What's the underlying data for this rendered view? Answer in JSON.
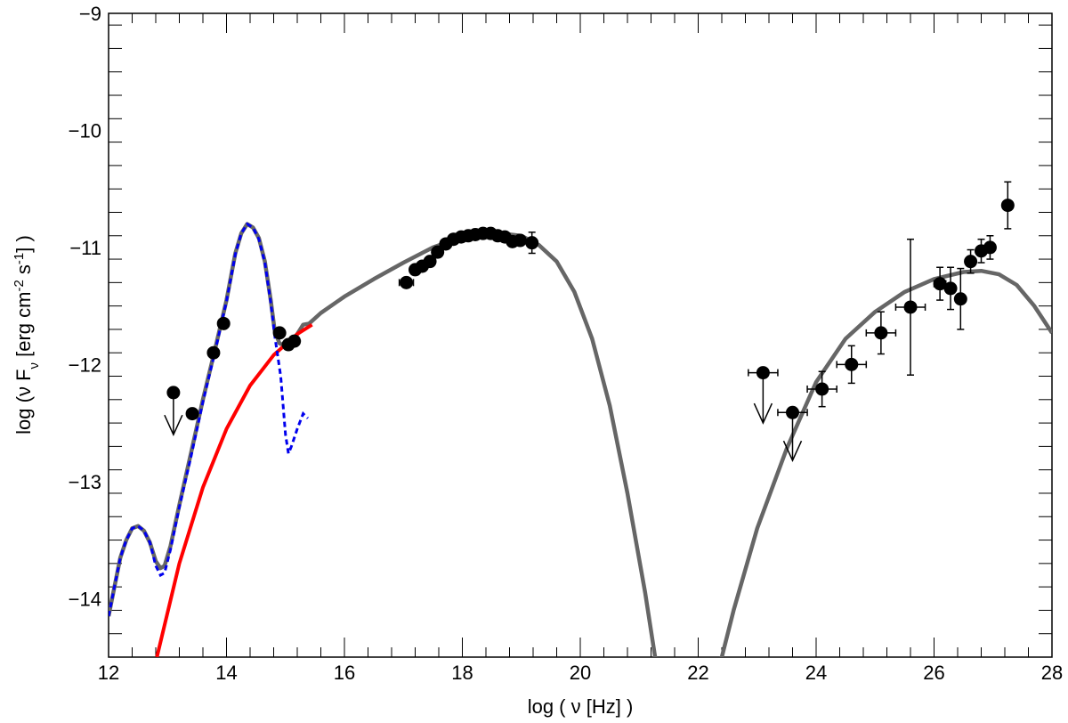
{
  "chart_data": {
    "type": "scatter",
    "title": "",
    "xlabel": "log ( ν [Hz] )",
    "ylabel": "log (ν F_ν [erg cm^-2 s^-1] )",
    "xlim": [
      12,
      28
    ],
    "ylim": [
      -14.5,
      -9
    ],
    "x_major_ticks": [
      12,
      14,
      16,
      18,
      20,
      22,
      24,
      26,
      28
    ],
    "y_major_ticks": [
      -14,
      -13,
      -12,
      -11,
      -10,
      -9
    ],
    "x_tick_labels": [
      "12",
      "14",
      "16",
      "18",
      "20",
      "22",
      "24",
      "26",
      "28"
    ],
    "y_tick_labels": [
      "−14",
      "−13",
      "−12",
      "−11",
      "−10",
      "−9"
    ],
    "grid": false,
    "colors": {
      "total_model": "#666666",
      "synchrotron_component": "#ff0000",
      "thermal_component": "#0000ee",
      "data": "#000000"
    },
    "series": [
      {
        "style": "solid-gray",
        "points": [
          [
            12.0,
            -14.15
          ],
          [
            12.1,
            -13.9
          ],
          [
            12.2,
            -13.65
          ],
          [
            12.3,
            -13.5
          ],
          [
            12.4,
            -13.4
          ],
          [
            12.5,
            -13.38
          ],
          [
            12.6,
            -13.42
          ],
          [
            12.7,
            -13.52
          ],
          [
            12.8,
            -13.68
          ],
          [
            12.88,
            -13.74
          ],
          [
            12.95,
            -13.72
          ],
          [
            13.05,
            -13.55
          ],
          [
            13.2,
            -13.2
          ],
          [
            13.4,
            -12.75
          ],
          [
            13.6,
            -12.3
          ],
          [
            13.8,
            -11.88
          ],
          [
            14.0,
            -11.45
          ],
          [
            14.15,
            -11.05
          ],
          [
            14.25,
            -10.88
          ],
          [
            14.35,
            -10.8
          ],
          [
            14.45,
            -10.83
          ],
          [
            14.55,
            -10.92
          ],
          [
            14.65,
            -11.12
          ],
          [
            14.75,
            -11.45
          ],
          [
            14.82,
            -11.72
          ],
          [
            14.9,
            -11.82
          ],
          [
            15.0,
            -11.84
          ],
          [
            15.1,
            -11.8
          ],
          [
            15.2,
            -11.74
          ],
          [
            15.3,
            -11.66
          ],
          [
            15.4,
            -11.65
          ],
          [
            15.6,
            -11.56
          ],
          [
            16.0,
            -11.42
          ],
          [
            16.5,
            -11.27
          ],
          [
            17.0,
            -11.13
          ],
          [
            17.5,
            -11.0
          ],
          [
            18.0,
            -10.91
          ],
          [
            18.5,
            -10.87
          ],
          [
            19.0,
            -10.9
          ],
          [
            19.3,
            -10.98
          ],
          [
            19.6,
            -11.12
          ],
          [
            19.9,
            -11.38
          ],
          [
            20.2,
            -11.78
          ],
          [
            20.5,
            -12.35
          ],
          [
            20.8,
            -13.1
          ],
          [
            21.1,
            -13.95
          ],
          [
            21.3,
            -14.6
          ]
        ]
      },
      {
        "style": "solid-gray",
        "points": [
          [
            22.35,
            -14.6
          ],
          [
            22.6,
            -14.1
          ],
          [
            23.0,
            -13.4
          ],
          [
            23.5,
            -12.72
          ],
          [
            24.0,
            -12.15
          ],
          [
            24.5,
            -11.78
          ],
          [
            25.0,
            -11.55
          ],
          [
            25.5,
            -11.38
          ],
          [
            26.0,
            -11.27
          ],
          [
            26.5,
            -11.21
          ],
          [
            26.8,
            -11.2
          ],
          [
            27.1,
            -11.23
          ],
          [
            27.4,
            -11.32
          ],
          [
            27.7,
            -11.5
          ],
          [
            28.0,
            -11.73
          ]
        ]
      },
      {
        "style": "solid-red",
        "points": [
          [
            12.82,
            -14.5
          ],
          [
            13.2,
            -13.7
          ],
          [
            13.6,
            -13.05
          ],
          [
            14.0,
            -12.55
          ],
          [
            14.4,
            -12.18
          ],
          [
            14.8,
            -11.92
          ],
          [
            15.2,
            -11.74
          ],
          [
            15.45,
            -11.66
          ]
        ]
      },
      {
        "style": "dashed-blue",
        "points": [
          [
            12.0,
            -14.15
          ],
          [
            12.1,
            -13.9
          ],
          [
            12.2,
            -13.65
          ],
          [
            12.3,
            -13.5
          ],
          [
            12.4,
            -13.4
          ],
          [
            12.5,
            -13.38
          ],
          [
            12.6,
            -13.42
          ],
          [
            12.7,
            -13.52
          ],
          [
            12.8,
            -13.72
          ],
          [
            12.88,
            -13.8
          ],
          [
            12.95,
            -13.78
          ],
          [
            13.05,
            -13.58
          ],
          [
            13.2,
            -13.22
          ],
          [
            13.4,
            -12.78
          ],
          [
            13.6,
            -12.32
          ],
          [
            13.8,
            -11.9
          ],
          [
            14.0,
            -11.46
          ],
          [
            14.15,
            -11.06
          ],
          [
            14.25,
            -10.88
          ],
          [
            14.35,
            -10.8
          ],
          [
            14.45,
            -10.83
          ],
          [
            14.55,
            -10.93
          ],
          [
            14.65,
            -11.13
          ],
          [
            14.75,
            -11.47
          ],
          [
            14.82,
            -11.76
          ],
          [
            14.92,
            -12.1
          ],
          [
            15.0,
            -12.6
          ],
          [
            15.05,
            -12.76
          ],
          [
            15.1,
            -12.7
          ],
          [
            15.2,
            -12.55
          ],
          [
            15.3,
            -12.42
          ],
          [
            15.38,
            -12.46
          ]
        ]
      },
      {
        "style": "points",
        "points": [
          {
            "x": 13.1,
            "y": -12.24
          },
          {
            "x": 13.42,
            "y": -12.42
          },
          {
            "x": 13.78,
            "y": -11.9
          },
          {
            "x": 13.95,
            "y": -11.65
          },
          {
            "x": 14.9,
            "y": -11.73
          },
          {
            "x": 15.05,
            "y": -11.83
          },
          {
            "x": 15.15,
            "y": -11.8
          },
          {
            "x": 17.05,
            "y": -11.3,
            "xerr": 0.12
          },
          {
            "x": 17.2,
            "y": -11.19
          },
          {
            "x": 17.32,
            "y": -11.16
          },
          {
            "x": 17.45,
            "y": -11.12
          },
          {
            "x": 17.58,
            "y": -11.04
          },
          {
            "x": 17.72,
            "y": -10.97
          },
          {
            "x": 17.85,
            "y": -10.93
          },
          {
            "x": 17.98,
            "y": -10.91
          },
          {
            "x": 18.1,
            "y": -10.9
          },
          {
            "x": 18.22,
            "y": -10.89
          },
          {
            "x": 18.35,
            "y": -10.88
          },
          {
            "x": 18.48,
            "y": -10.88
          },
          {
            "x": 18.6,
            "y": -10.9
          },
          {
            "x": 18.72,
            "y": -10.91
          },
          {
            "x": 18.85,
            "y": -10.95
          },
          {
            "x": 18.98,
            "y": -10.94
          },
          {
            "x": 19.18,
            "y": -10.96,
            "yerr": 0.09
          },
          {
            "x": 23.1,
            "y": -12.07,
            "xerr": 0.25
          },
          {
            "x": 23.6,
            "y": -12.41,
            "xerr": 0.25
          },
          {
            "x": 24.1,
            "y": -12.21,
            "xerr": 0.25,
            "yerr": 0.15
          },
          {
            "x": 24.6,
            "y": -12.0,
            "xerr": 0.25,
            "yerr": 0.16
          },
          {
            "x": 25.1,
            "y": -11.73,
            "xerr": 0.25,
            "yerr": 0.18
          },
          {
            "x": 25.6,
            "y": -11.51,
            "xerr": 0.25,
            "yerr": 0.58
          },
          {
            "x": 26.1,
            "y": -11.31,
            "xerr": 0.1,
            "yerr": 0.14
          },
          {
            "x": 26.28,
            "y": -11.35,
            "xerr": 0.08,
            "yerr": 0.18
          },
          {
            "x": 26.45,
            "y": -11.44,
            "xerr": 0.08,
            "yerr": 0.26
          },
          {
            "x": 26.62,
            "y": -11.12,
            "xerr": 0.08,
            "yerr": 0.1
          },
          {
            "x": 26.8,
            "y": -11.03,
            "xerr": 0.08,
            "yerr": 0.1
          },
          {
            "x": 26.95,
            "y": -11.0,
            "xerr": 0.08,
            "yerr": 0.1
          },
          {
            "x": 27.25,
            "y": -10.64,
            "yerr": 0.2
          }
        ]
      },
      {
        "style": "upper-limits",
        "points": [
          {
            "x": 13.1,
            "y": -12.24,
            "tip": -12.6
          },
          {
            "x": 23.1,
            "y": -12.07,
            "tip": -12.5
          },
          {
            "x": 23.6,
            "y": -12.41,
            "tip": -12.82
          }
        ]
      }
    ]
  }
}
